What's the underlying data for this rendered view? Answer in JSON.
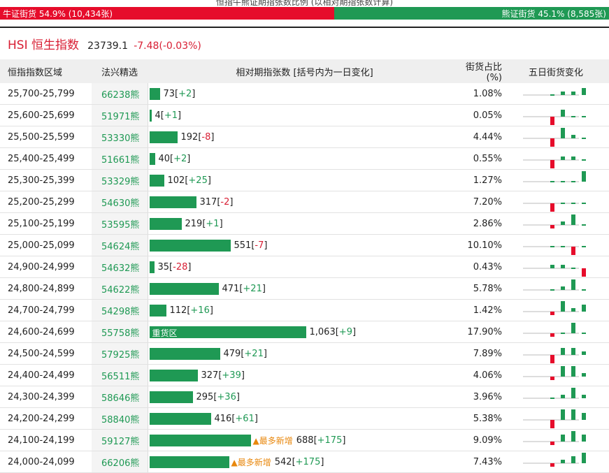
{
  "caption": "恒指牛熊证期指张数比例 (以相对期指张数计算)",
  "ratio": {
    "bull_text": "牛证街货 54.9% (10,434张)",
    "bear_text": "熊证街货 45.1% (8,585张)",
    "bull_pct": 54.9,
    "bear_pct": 45.1
  },
  "index": {
    "name": "HSI 恒生指数",
    "value": "23739.1",
    "change": "-7.48(-0.03%)"
  },
  "headers": {
    "range": "恒指指数区域",
    "pick": "法兴精选",
    "contracts": "相对期指张数 [括号内为一日变化]",
    "share": "街货占比(%)",
    "five_day": "五日街货变化"
  },
  "colors": {
    "bull": "#e60c2b",
    "bear": "#1f9954"
  },
  "rows": [
    {
      "range": "25,700-25,799",
      "pick": "66238熊",
      "value": 73,
      "value_text": "73",
      "change": "+2",
      "share": "1.08%",
      "spark": [
        0,
        0,
        1,
        1,
        2
      ]
    },
    {
      "range": "25,600-25,699",
      "pick": "51971熊",
      "value": 4,
      "value_text": "4",
      "change": "+1",
      "share": "0.05%",
      "spark": [
        0,
        -3,
        2,
        0,
        0
      ]
    },
    {
      "range": "25,500-25,599",
      "pick": "53330熊",
      "value": 192,
      "value_text": "192",
      "change": "-8",
      "share": "4.44%",
      "spark": [
        0,
        -3,
        3,
        1,
        0
      ]
    },
    {
      "range": "25,400-25,499",
      "pick": "51661熊",
      "value": 40,
      "value_text": "40",
      "change": "+2",
      "share": "0.55%",
      "spark": [
        0,
        -3,
        1,
        1,
        0
      ]
    },
    {
      "range": "25,300-25,399",
      "pick": "53329熊",
      "value": 102,
      "value_text": "102",
      "change": "+25",
      "share": "1.27%",
      "spark": [
        0,
        0,
        0,
        0,
        3
      ]
    },
    {
      "range": "25,200-25,299",
      "pick": "54630熊",
      "value": 317,
      "value_text": "317",
      "change": "-2",
      "share": "7.20%",
      "spark": [
        0,
        -3,
        0,
        0,
        0
      ]
    },
    {
      "range": "25,100-25,199",
      "pick": "53595熊",
      "value": 219,
      "value_text": "219",
      "change": "+1",
      "share": "2.86%",
      "spark": [
        0,
        -1,
        1,
        3,
        0
      ]
    },
    {
      "range": "25,000-25,099",
      "pick": "54624熊",
      "value": 551,
      "value_text": "551",
      "change": "-7",
      "share": "10.10%",
      "spark": [
        0,
        0,
        0,
        -3,
        0
      ]
    },
    {
      "range": "24,900-24,999",
      "pick": "54632熊",
      "value": 35,
      "value_text": "35",
      "change": "-28",
      "share": "0.43%",
      "spark": [
        0,
        1,
        1,
        0,
        -3
      ]
    },
    {
      "range": "24,800-24,899",
      "pick": "54622熊",
      "value": 471,
      "value_text": "471",
      "change": "+21",
      "share": "5.78%",
      "spark": [
        0,
        0,
        1,
        3,
        0
      ]
    },
    {
      "range": "24,700-24,799",
      "pick": "54298熊",
      "value": 112,
      "value_text": "112",
      "change": "+16",
      "share": "1.42%",
      "spark": [
        0,
        -1,
        3,
        1,
        2
      ]
    },
    {
      "range": "24,600-24,699",
      "pick": "55758熊",
      "value": 1063,
      "value_text": "1,063",
      "change": "+9",
      "share": "17.90%",
      "spark": [
        0,
        -1,
        0,
        3,
        0
      ],
      "label": "重货区"
    },
    {
      "range": "24,500-24,599",
      "pick": "57925熊",
      "value": 479,
      "value_text": "479",
      "change": "+21",
      "share": "7.89%",
      "spark": [
        0,
        -3,
        2,
        2,
        1
      ]
    },
    {
      "range": "24,400-24,499",
      "pick": "56511熊",
      "value": 327,
      "value_text": "327",
      "change": "+39",
      "share": "4.06%",
      "spark": [
        0,
        -1,
        3,
        3,
        1
      ]
    },
    {
      "range": "24,300-24,399",
      "pick": "58646熊",
      "value": 295,
      "value_text": "295",
      "change": "+36",
      "share": "3.96%",
      "spark": [
        0,
        0,
        1,
        3,
        1
      ]
    },
    {
      "range": "24,200-24,299",
      "pick": "58840熊",
      "value": 416,
      "value_text": "416",
      "change": "+61",
      "share": "5.38%",
      "spark": [
        0,
        -3,
        3,
        3,
        2
      ]
    },
    {
      "range": "24,100-24,199",
      "pick": "59127熊",
      "value": 688,
      "value_text": "688",
      "change": "+175",
      "share": "9.09%",
      "spark": [
        0,
        -1,
        2,
        3,
        2
      ],
      "hot": "▲最多新增"
    },
    {
      "range": "24,000-24,099",
      "pick": "66206熊",
      "value": 542,
      "value_text": "542",
      "change": "+175",
      "share": "7.43%",
      "spark": [
        0,
        -1,
        1,
        2,
        3
      ],
      "hot": "▲最多新增"
    }
  ]
}
